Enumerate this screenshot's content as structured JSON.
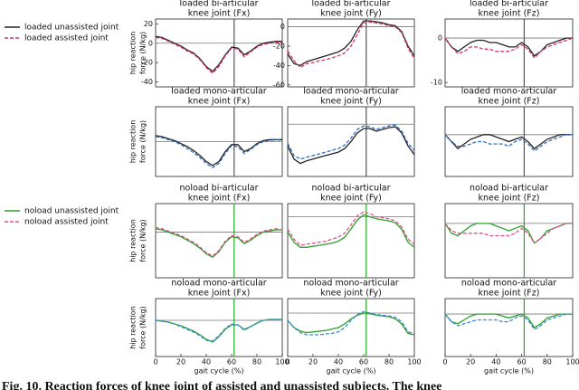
{
  "chart_data": [
    {
      "type": "line",
      "title": [
        "loaded bi-articular",
        "knee joint (Fx)"
      ],
      "ylabel": [
        "hip reaction",
        "force (N/kg)"
      ],
      "x": [
        0,
        5,
        10,
        15,
        20,
        25,
        30,
        35,
        40,
        45,
        50,
        55,
        60,
        65,
        70,
        75,
        80,
        85,
        90,
        95,
        100
      ],
      "xlim": [
        0,
        100
      ],
      "ylim": [
        -45,
        25
      ],
      "yticks": [
        20,
        0,
        -20,
        -40
      ],
      "hline": 0,
      "vline": 62,
      "vline_color": "#555555",
      "series": [
        {
          "name": "loaded unassisted joint",
          "color": "#222222",
          "dash": false,
          "values": [
            7,
            6,
            3,
            0,
            -3,
            -7,
            -10,
            -16,
            -24,
            -29,
            -22,
            -12,
            -4,
            -5,
            -12,
            -8,
            -3,
            0,
            1,
            2,
            2
          ]
        },
        {
          "name": "loaded assisted joint",
          "color": "#d6336c",
          "dash": true,
          "values": [
            6,
            5,
            2,
            -1,
            -4,
            -8,
            -11,
            -17,
            -25,
            -31,
            -24,
            -13,
            -5,
            -6,
            -14,
            -9,
            -4,
            -1,
            0,
            1,
            1
          ]
        }
      ]
    },
    {
      "type": "line",
      "title": [
        "loaded bi-articular",
        "knee joint (Fy)"
      ],
      "x": [
        0,
        5,
        10,
        15,
        20,
        25,
        30,
        35,
        40,
        45,
        50,
        55,
        60,
        65,
        70,
        75,
        80,
        85,
        90,
        95,
        100
      ],
      "xlim": [
        0,
        100
      ],
      "ylim": [
        -62,
        8
      ],
      "yticks": [
        0,
        -20,
        -40,
        -60
      ],
      "hline": 0,
      "vline": 62,
      "vline_color": "#555555",
      "series": [
        {
          "color": "#222222",
          "dash": false,
          "values": [
            -28,
            -38,
            -40,
            -36,
            -34,
            -32,
            -30,
            -28,
            -26,
            -22,
            -15,
            -3,
            6,
            6,
            5,
            4,
            2,
            1,
            -5,
            -20,
            -30
          ]
        },
        {
          "color": "#d6336c",
          "dash": true,
          "values": [
            -25,
            -35,
            -42,
            -38,
            -37,
            -35,
            -34,
            -32,
            -30,
            -27,
            -20,
            -8,
            4,
            5,
            4,
            3,
            1,
            0,
            -6,
            -22,
            -33
          ]
        }
      ]
    },
    {
      "type": "line",
      "title": [
        "loaded bi-articular",
        "knee joint (Fz)"
      ],
      "x": [
        0,
        5,
        10,
        15,
        20,
        25,
        30,
        35,
        40,
        45,
        50,
        55,
        60,
        65,
        70,
        75,
        80,
        85,
        90,
        95,
        100
      ],
      "xlim": [
        0,
        100
      ],
      "ylim": [
        -11,
        4.3
      ],
      "yticks": [
        0,
        -10
      ],
      "hline": 0,
      "vline": 62,
      "vline_color": "#555555",
      "series": [
        {
          "color": "#222222",
          "dash": false,
          "values": [
            0,
            -2,
            -3,
            -2,
            -1,
            -0.5,
            -0.5,
            -1,
            -1,
            -1.5,
            -2,
            -2,
            -1,
            -2,
            -4,
            -3,
            -1.5,
            -1,
            -0.5,
            0,
            0
          ]
        },
        {
          "color": "#d6336c",
          "dash": true,
          "values": [
            0,
            -2,
            -3.5,
            -3,
            -2,
            -2,
            -2.5,
            -2.5,
            -3,
            -3,
            -3,
            -2.5,
            -1.5,
            -2.5,
            -4.5,
            -3,
            -2,
            -1.5,
            -1,
            -0.5,
            0
          ]
        }
      ]
    },
    {
      "type": "line",
      "title": [
        "loaded mono-articular",
        "knee joint (Fx)"
      ],
      "ylabel": [
        "hip reaction",
        "force (N/kg)"
      ],
      "x": [
        0,
        5,
        10,
        15,
        20,
        25,
        30,
        35,
        40,
        45,
        50,
        55,
        60,
        65,
        70,
        75,
        80,
        85,
        90,
        95,
        100
      ],
      "xlim": [
        0,
        100
      ],
      "ylim": [
        -35,
        35
      ],
      "hline": 0,
      "vline": 62,
      "vline_color": "#555555",
      "series": [
        {
          "color": "#222222",
          "dash": false,
          "values": [
            6,
            5,
            3,
            1,
            -2,
            -5,
            -9,
            -14,
            -20,
            -24,
            -20,
            -10,
            -3,
            -3,
            -10,
            -7,
            -2,
            1,
            2,
            2,
            2
          ]
        },
        {
          "color": "#2e6fc0",
          "dash": true,
          "values": [
            5,
            4,
            2,
            0,
            -3,
            -7,
            -11,
            -16,
            -22,
            -26,
            -22,
            -12,
            -4,
            -5,
            -12,
            -8,
            -3,
            0,
            1,
            2,
            1
          ]
        }
      ]
    },
    {
      "type": "line",
      "title": [
        "loaded mono-articular",
        "knee joint (Fy)"
      ],
      "x": [
        0,
        5,
        10,
        15,
        20,
        25,
        30,
        35,
        40,
        45,
        50,
        55,
        60,
        65,
        70,
        75,
        80,
        85,
        90,
        95,
        100
      ],
      "xlim": [
        0,
        100
      ],
      "ylim": [
        -60,
        20
      ],
      "hline": 0,
      "vline": 62,
      "vline_color": "#555555",
      "series": [
        {
          "color": "#222222",
          "dash": false,
          "values": [
            -25,
            -40,
            -45,
            -42,
            -40,
            -38,
            -36,
            -34,
            -32,
            -28,
            -20,
            -10,
            -5,
            -5,
            -8,
            -6,
            -4,
            -3,
            -10,
            -25,
            -35
          ]
        },
        {
          "color": "#2e6fc0",
          "dash": true,
          "values": [
            -22,
            -36,
            -40,
            -38,
            -36,
            -34,
            -32,
            -30,
            -28,
            -24,
            -16,
            -6,
            -2,
            -3,
            -6,
            -4,
            -2,
            -1,
            -8,
            -22,
            -30
          ]
        }
      ]
    },
    {
      "type": "line",
      "title": [
        "loaded mono-articular",
        "knee joint (Fz)"
      ],
      "x": [
        0,
        5,
        10,
        15,
        20,
        25,
        30,
        35,
        40,
        45,
        50,
        55,
        60,
        65,
        70,
        75,
        80,
        85,
        90,
        95,
        100
      ],
      "xlim": [
        0,
        100
      ],
      "ylim": [
        -9,
        6
      ],
      "hline": 0,
      "vline": 62,
      "vline_color": "#555555",
      "series": [
        {
          "color": "#222222",
          "dash": false,
          "values": [
            0,
            -1.5,
            -3,
            -2,
            -1,
            -0.5,
            0,
            0,
            -0.5,
            -1,
            -1.5,
            -1,
            -0.5,
            -1.5,
            -3,
            -2,
            -1,
            -0.5,
            0,
            0,
            0
          ]
        },
        {
          "color": "#2e6fc0",
          "dash": true,
          "values": [
            0,
            -1.5,
            -2.5,
            -2.5,
            -2,
            -1.5,
            -1.5,
            -2,
            -2,
            -2,
            -2.5,
            -1.5,
            -1,
            -2,
            -3.5,
            -2.5,
            -1.5,
            -1,
            -0.5,
            0,
            0
          ]
        }
      ]
    },
    {
      "type": "line",
      "title": [
        "noload bi-articular",
        "knee joint (Fx)"
      ],
      "ylabel": [
        "hip reaction",
        "force (N/kg)"
      ],
      "x": [
        0,
        5,
        10,
        15,
        20,
        25,
        30,
        35,
        40,
        45,
        50,
        55,
        60,
        65,
        70,
        75,
        80,
        85,
        90,
        95,
        100
      ],
      "xlim": [
        0,
        100
      ],
      "ylim": [
        -40,
        25
      ],
      "hline": 0,
      "vline": 62,
      "vline_color": "#22aa22",
      "series": [
        {
          "name": "noload unassisted joint",
          "color": "#2ca02c",
          "dash": false,
          "values": [
            3,
            2,
            0,
            -2,
            -4,
            -7,
            -10,
            -14,
            -19,
            -22,
            -17,
            -9,
            -4,
            -5,
            -10,
            -7,
            -3,
            0,
            1,
            2,
            2
          ]
        },
        {
          "name": "noload assisted joint",
          "color": "#e0508a",
          "dash": true,
          "values": [
            4,
            3,
            1,
            -1,
            -3,
            -6,
            -9,
            -13,
            -18,
            -21,
            -16,
            -8,
            -3,
            -4,
            -9,
            -6,
            -2,
            1,
            2,
            3,
            2
          ]
        }
      ]
    },
    {
      "type": "line",
      "title": [
        "noload bi-articular",
        "knee joint (Fy)"
      ],
      "x": [
        0,
        5,
        10,
        15,
        20,
        25,
        30,
        35,
        40,
        45,
        50,
        55,
        60,
        65,
        70,
        75,
        80,
        85,
        90,
        95,
        100
      ],
      "xlim": [
        0,
        100
      ],
      "ylim": [
        -60,
        13
      ],
      "hline": 0,
      "vline": 62,
      "vline_color": "#22aa22",
      "series": [
        {
          "color": "#2ca02c",
          "dash": false,
          "values": [
            -15,
            -25,
            -30,
            -30,
            -29,
            -28,
            -27,
            -26,
            -24,
            -20,
            -12,
            -3,
            2,
            0,
            -2,
            -3,
            -4,
            -6,
            -12,
            -25,
            -30
          ]
        },
        {
          "color": "#e0508a",
          "dash": true,
          "values": [
            -12,
            -22,
            -28,
            -27,
            -26,
            -25,
            -24,
            -22,
            -20,
            -16,
            -8,
            1,
            5,
            3,
            0,
            -1,
            -2,
            -4,
            -10,
            -22,
            -27
          ]
        }
      ]
    },
    {
      "type": "line",
      "title": [
        "noload bi-articular",
        "knee joint (Fz)"
      ],
      "x": [
        0,
        5,
        10,
        15,
        20,
        25,
        30,
        35,
        40,
        45,
        50,
        55,
        60,
        65,
        70,
        75,
        80,
        85,
        90,
        95,
        100
      ],
      "xlim": [
        0,
        100
      ],
      "ylim": [
        -11,
        4
      ],
      "hline": 0,
      "vline": 62,
      "vline_color": "#22aa22",
      "series": [
        {
          "color": "#2ca02c",
          "dash": false,
          "values": [
            0,
            -2,
            -2.5,
            -1.5,
            -0.5,
            0,
            0,
            0,
            -0.5,
            -1,
            -1.5,
            -1,
            -0.5,
            -1.5,
            -4,
            -3,
            -1.5,
            -1,
            -0.5,
            0,
            0
          ]
        },
        {
          "color": "#e0508a",
          "dash": true,
          "values": [
            0,
            -1.5,
            -2,
            -2,
            -2,
            -2,
            -2,
            -2.5,
            -2.5,
            -2.5,
            -2.5,
            -2,
            -1,
            -2,
            -4,
            -3,
            -2,
            -1,
            -0.5,
            0,
            0
          ]
        }
      ]
    },
    {
      "type": "line",
      "title": [
        "noload mono-articular",
        "knee joint (Fx)"
      ],
      "ylabel": [
        "hip reaction",
        "force (N/kg)"
      ],
      "xlabel": "gait cycle (%)",
      "x": [
        0,
        5,
        10,
        15,
        20,
        25,
        30,
        35,
        40,
        45,
        50,
        55,
        60,
        65,
        70,
        75,
        80,
        85,
        90,
        95,
        100
      ],
      "xlim": [
        0,
        100
      ],
      "ylim": [
        -40,
        24
      ],
      "xticks": [
        0,
        20,
        40,
        60,
        80,
        100
      ],
      "hline": 0,
      "vline": 62,
      "vline_color": "#22aa22",
      "series": [
        {
          "color": "#2ca02c",
          "dash": false,
          "values": [
            0,
            -1,
            -2,
            -4,
            -6,
            -9,
            -12,
            -16,
            -21,
            -24,
            -18,
            -10,
            -5,
            -5,
            -10,
            -7,
            -3,
            0,
            1,
            1,
            1
          ]
        },
        {
          "color": "#3a8ad6",
          "dash": true,
          "values": [
            0,
            -1,
            -2,
            -4,
            -7,
            -10,
            -13,
            -17,
            -22,
            -23,
            -17,
            -9,
            -4,
            -5,
            -11,
            -7,
            -3,
            0,
            1,
            1,
            1
          ]
        }
      ]
    },
    {
      "type": "line",
      "title": [
        "noload mono-articular",
        "knee joint (Fy)"
      ],
      "xlabel": "gait cycle (%)",
      "x": [
        0,
        5,
        10,
        15,
        20,
        25,
        30,
        35,
        40,
        45,
        50,
        55,
        60,
        65,
        70,
        75,
        80,
        85,
        90,
        95,
        100
      ],
      "xlim": [
        0,
        100
      ],
      "ylim": [
        -60,
        20
      ],
      "xticks": [
        0,
        20,
        40,
        60,
        80,
        100
      ],
      "hline": 0,
      "vline": 62,
      "vline_color": "#22aa22",
      "series": [
        {
          "color": "#2ca02c",
          "dash": false,
          "values": [
            -10,
            -20,
            -25,
            -27,
            -26,
            -25,
            -24,
            -22,
            -20,
            -15,
            -8,
            -3,
            0,
            -1,
            -3,
            -4,
            -5,
            -8,
            -15,
            -28,
            -30
          ]
        },
        {
          "color": "#3a8ad6",
          "dash": true,
          "values": [
            -10,
            -20,
            -27,
            -30,
            -30,
            -30,
            -29,
            -28,
            -26,
            -20,
            -10,
            -2,
            2,
            0,
            -2,
            -3,
            -4,
            -6,
            -12,
            -26,
            -28
          ]
        }
      ]
    },
    {
      "type": "line",
      "title": [
        "noload mono-articular",
        "knee joint (Fz)"
      ],
      "xlabel": "gait cycle (%)",
      "x": [
        0,
        5,
        10,
        15,
        20,
        25,
        30,
        35,
        40,
        45,
        50,
        55,
        60,
        65,
        70,
        75,
        80,
        85,
        90,
        95,
        100
      ],
      "xlim": [
        0,
        100
      ],
      "ylim": [
        -11,
        4
      ],
      "xticks": [
        0,
        20,
        40,
        60,
        80,
        100
      ],
      "hline": 0,
      "vline": 62,
      "vline_color": "#22aa22",
      "series": [
        {
          "color": "#2ca02c",
          "dash": false,
          "values": [
            0,
            -2,
            -2.5,
            -1.5,
            -0.5,
            0,
            0,
            0,
            0,
            -0.5,
            -1,
            -0.5,
            0,
            -1,
            -3.5,
            -2.5,
            -1,
            -0.5,
            0,
            0,
            0
          ]
        },
        {
          "color": "#3a8ad6",
          "dash": true,
          "values": [
            0,
            -2,
            -3,
            -2.5,
            -2,
            -1.5,
            -1.5,
            -1.5,
            -1.5,
            -2,
            -2,
            -1,
            -0.5,
            -1.5,
            -4,
            -3,
            -1.5,
            -1,
            -0.5,
            0,
            0
          ]
        }
      ]
    }
  ],
  "caption": "Fig. 10. Reaction forces of knee joint of assisted and unassisted subjects. The knee"
}
